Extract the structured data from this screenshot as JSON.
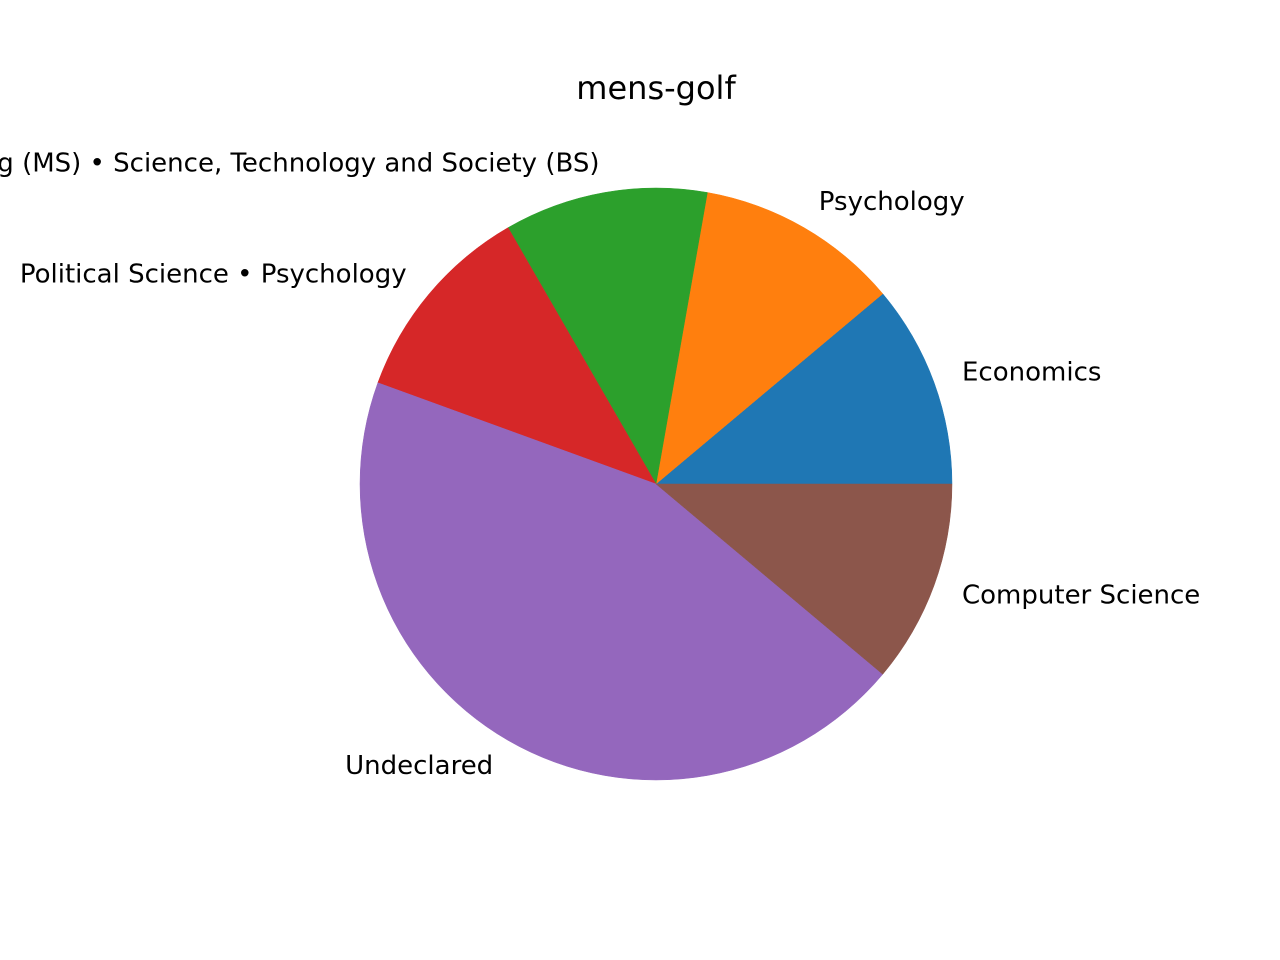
{
  "chart_data": {
    "type": "pie",
    "title": "mens-golf",
    "start_angle_deg": 0,
    "direction": "counterclockwise",
    "slices": [
      {
        "label": "Economics",
        "value": 1,
        "color": "#1f77b4"
      },
      {
        "label": "Psychology",
        "value": 1,
        "color": "#ff7f0e"
      },
      {
        "label": "Management Science and Engineering (MS) • Science, Technology and Society (BS)",
        "value": 1,
        "color": "#2ca02c"
      },
      {
        "label": "Political Science • Psychology",
        "value": 1,
        "color": "#d62728"
      },
      {
        "label": "Undeclared",
        "value": 4,
        "color": "#9467bd"
      },
      {
        "label": "Computer Science",
        "value": 1,
        "color": "#8c564b"
      }
    ]
  }
}
